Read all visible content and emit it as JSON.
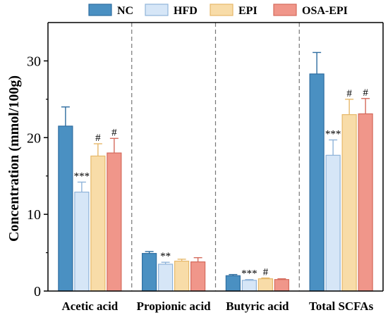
{
  "chart_data": {
    "type": "bar",
    "ylabel": "Concentration (mmol/100g)",
    "xlabel": "",
    "ylim": [
      0,
      35
    ],
    "yticks": [
      0,
      10,
      20,
      30
    ],
    "legend_position": "top",
    "categories": [
      "Acetic acid",
      "Propionic acid",
      "Butyric acid",
      "Total SCFAs"
    ],
    "series": [
      {
        "name": "NC",
        "fill": "#4a90c2",
        "edge": "#2e6da0",
        "values": [
          21.5,
          4.9,
          2.0,
          28.3
        ],
        "errors": [
          2.5,
          0.25,
          0.15,
          2.8
        ],
        "marks": [
          "",
          "",
          "",
          ""
        ]
      },
      {
        "name": "HFD",
        "fill": "#d6e6f7",
        "edge": "#8fb3d9",
        "values": [
          12.9,
          3.5,
          1.4,
          17.7
        ],
        "errors": [
          1.3,
          0.25,
          0.1,
          2.0
        ],
        "marks": [
          "***",
          "**",
          "***",
          "***"
        ]
      },
      {
        "name": "EPI",
        "fill": "#f8dca8",
        "edge": "#e6b86a",
        "values": [
          17.6,
          3.9,
          1.6,
          23.0
        ],
        "errors": [
          1.6,
          0.25,
          0.1,
          2.0
        ],
        "marks": [
          "#",
          "",
          "#",
          "#"
        ]
      },
      {
        "name": "OSA-EPI",
        "fill": "#f0968a",
        "edge": "#d46a5c",
        "values": [
          18.0,
          3.8,
          1.5,
          23.1
        ],
        "errors": [
          1.9,
          0.55,
          0.1,
          2.0
        ],
        "marks": [
          "#",
          "",
          "",
          "#"
        ]
      }
    ]
  }
}
